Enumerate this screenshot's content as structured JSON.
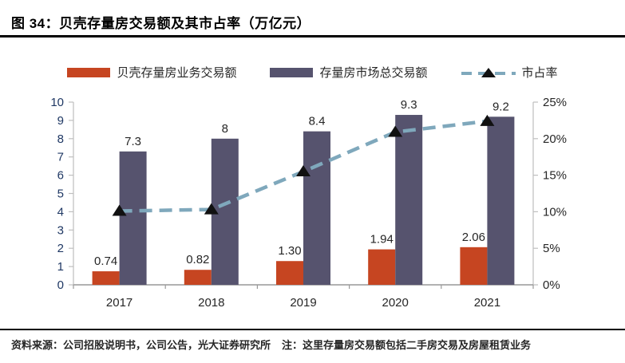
{
  "header": {
    "title": "图 34：贝壳存量房交易额及其市占率（万亿元）"
  },
  "legend": [
    {
      "label": "贝壳存量房业务交易额",
      "type": "bar",
      "color": "#C64521"
    },
    {
      "label": "存量房市场总交易额",
      "type": "bar",
      "color": "#56536E"
    },
    {
      "label": "市占率",
      "type": "line",
      "color": "#7FA8BC",
      "marker_color": "#111111"
    }
  ],
  "footer": {
    "source": "资料来源：公司招股说明书，公司公告，光大证券研究所",
    "note": "注：这里存量房交易额包括二手房交易及房屋租赁业务"
  },
  "chart_data": {
    "type": "bar",
    "subtype": "grouped-bar-with-line-combo",
    "categories": [
      "2017",
      "2018",
      "2019",
      "2020",
      "2021"
    ],
    "series": [
      {
        "name": "贝壳存量房业务交易额",
        "type": "bar",
        "axis": "left",
        "color": "#C64521",
        "values": [
          0.74,
          0.82,
          1.3,
          1.94,
          2.06
        ],
        "labels": [
          "0.74",
          "0.82",
          "1.30",
          "1.94",
          "2.06"
        ]
      },
      {
        "name": "存量房市场总交易额",
        "type": "bar",
        "axis": "left",
        "color": "#56536E",
        "values": [
          7.3,
          8,
          8.4,
          9.3,
          9.2
        ],
        "labels": [
          "7.3",
          "8",
          "8.4",
          "9.3",
          "9.2"
        ]
      },
      {
        "name": "市占率",
        "type": "line",
        "axis": "right",
        "color": "#7FA8BC",
        "line_style": "dashed",
        "marker": "black-triangle-up",
        "values_percent": [
          10.1,
          10.3,
          15.5,
          20.9,
          22.4
        ]
      }
    ],
    "left_axis": {
      "min": 0,
      "max": 10,
      "step": 1,
      "tick_labels": [
        "0",
        "1",
        "2",
        "3",
        "4",
        "5",
        "6",
        "7",
        "8",
        "9",
        "10"
      ],
      "label_color": "#1F3864"
    },
    "right_axis": {
      "min": 0,
      "max": 25,
      "step": 5,
      "tick_labels": [
        "0%",
        "5%",
        "10%",
        "15%",
        "20%",
        "25%"
      ],
      "label_color": "#262626"
    },
    "grid": false,
    "legend_position": "top",
    "value_label_color": "#262626",
    "axis_line_color": "#BFBFBF",
    "baseline_color": "#999999"
  }
}
